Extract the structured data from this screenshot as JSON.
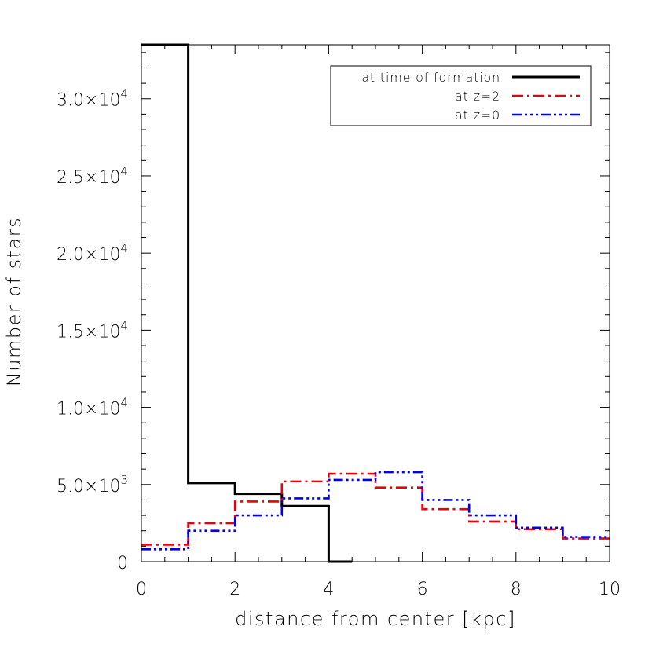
{
  "chart_data": {
    "type": "line",
    "step": true,
    "xlabel": "distance from center [kpc]",
    "ylabel": "Number of stars",
    "xlim": [
      0,
      10
    ],
    "ylim": [
      0,
      33500
    ],
    "x_ticks": [
      0,
      2,
      4,
      6,
      8,
      10
    ],
    "x_tick_labels": [
      "0",
      "2",
      "4",
      "6",
      "8",
      "10"
    ],
    "y_ticks": [
      0,
      5000,
      10000,
      15000,
      20000,
      25000,
      30000
    ],
    "y_tick_labels": [
      {
        "mantissa": "0",
        "exponent": ""
      },
      {
        "mantissa": "5.0×10",
        "exponent": "3"
      },
      {
        "mantissa": "1.0×10",
        "exponent": "4"
      },
      {
        "mantissa": "1.5×10",
        "exponent": "4"
      },
      {
        "mantissa": "2.0×10",
        "exponent": "4"
      },
      {
        "mantissa": "2.5×10",
        "exponent": "4"
      },
      {
        "mantissa": "3.0×10",
        "exponent": "4"
      }
    ],
    "grid": false,
    "legend_position": "top-right",
    "bin_edges": [
      0,
      1,
      2,
      3,
      4,
      5,
      6,
      7,
      8,
      9,
      10
    ],
    "series": [
      {
        "name": "at time of formation",
        "color": "#000000",
        "dash": "solid",
        "bin_edges": [
          0,
          1,
          2,
          3,
          4,
          4.5
        ],
        "values": [
          33500,
          5100,
          4400,
          3600,
          0
        ]
      },
      {
        "name": "at z=2",
        "color": "#e8000b",
        "dash": "dash-dot",
        "values": [
          1100,
          2500,
          3900,
          5200,
          5700,
          4800,
          3400,
          2600,
          2100,
          1500
        ]
      },
      {
        "name": "at z=0",
        "color": "#0000e6",
        "dash": "dash-dot-dot-dot",
        "values": [
          800,
          2000,
          3000,
          4100,
          5300,
          5800,
          4000,
          3000,
          2200,
          1600
        ]
      }
    ]
  }
}
